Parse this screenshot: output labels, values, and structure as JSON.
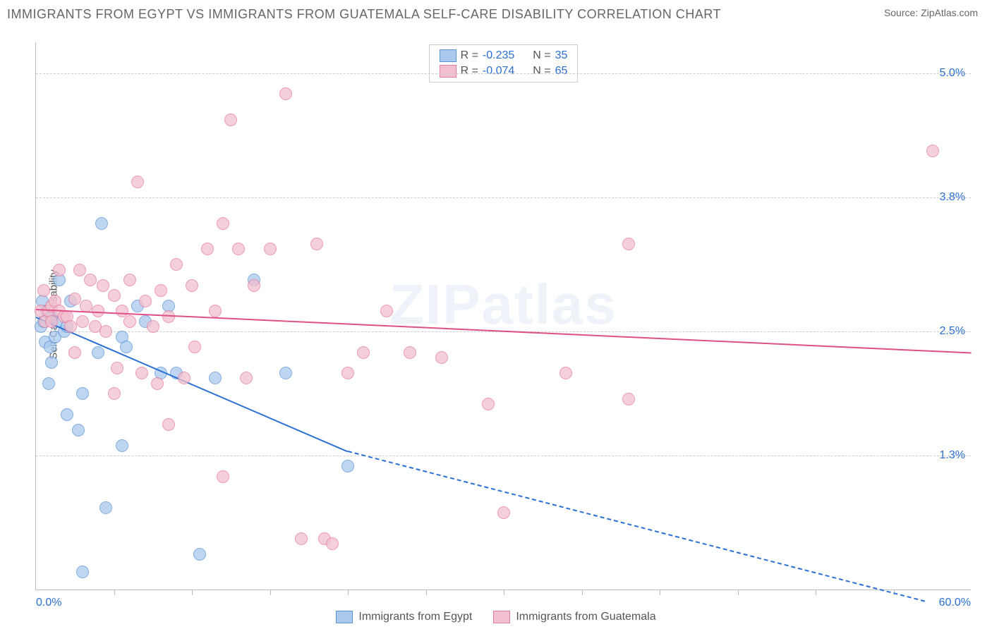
{
  "title": "IMMIGRANTS FROM EGYPT VS IMMIGRANTS FROM GUATEMALA SELF-CARE DISABILITY CORRELATION CHART",
  "source": "Source: ZipAtlas.com",
  "watermark": "ZIPatlas",
  "ylabel": "Self-Care Disability",
  "chart": {
    "type": "scatter",
    "xlim": [
      0,
      60
    ],
    "ylim": [
      0,
      5.3
    ],
    "x_min_label": "0.0%",
    "x_max_label": "60.0%",
    "y_ticks": [
      {
        "v": 1.3,
        "label": "1.3%"
      },
      {
        "v": 2.5,
        "label": "2.5%"
      },
      {
        "v": 3.8,
        "label": "3.8%"
      },
      {
        "v": 5.0,
        "label": "5.0%"
      }
    ],
    "x_tick_positions": [
      5,
      10,
      15,
      20,
      25,
      30,
      35,
      40,
      45,
      50,
      55
    ],
    "grid_color": "#cccccc",
    "background_color": "#ffffff",
    "marker_radius": 8,
    "marker_stroke_width": 1.5,
    "trend_width": 2,
    "series": [
      {
        "name": "Immigrants from Egypt",
        "fill": "#a9c9ed",
        "stroke": "#5b93d6",
        "line_color": "#2a6fd6",
        "R": "-0.235",
        "N": "35",
        "trend": {
          "x1": 0,
          "y1": 2.65,
          "x2": 20,
          "y2": 1.35,
          "dash_to_x": 57,
          "dash_to_y": -0.1
        },
        "points": [
          [
            0.3,
            2.55
          ],
          [
            0.4,
            2.8
          ],
          [
            0.5,
            2.6
          ],
          [
            0.6,
            2.4
          ],
          [
            0.9,
            2.35
          ],
          [
            0.7,
            2.7
          ],
          [
            1.0,
            2.2
          ],
          [
            0.8,
            2.0
          ],
          [
            1.2,
            2.45
          ],
          [
            1.3,
            2.6
          ],
          [
            1.5,
            3.0
          ],
          [
            1.8,
            2.5
          ],
          [
            2.0,
            2.55
          ],
          [
            2.0,
            1.7
          ],
          [
            2.2,
            2.8
          ],
          [
            2.7,
            1.55
          ],
          [
            3.0,
            1.9
          ],
          [
            3.0,
            0.18
          ],
          [
            4.0,
            2.3
          ],
          [
            4.2,
            3.55
          ],
          [
            4.5,
            0.8
          ],
          [
            5.5,
            1.4
          ],
          [
            5.5,
            2.45
          ],
          [
            5.8,
            2.35
          ],
          [
            6.5,
            2.75
          ],
          [
            7.0,
            2.6
          ],
          [
            8.0,
            2.1
          ],
          [
            8.5,
            2.75
          ],
          [
            9.0,
            2.1
          ],
          [
            10.5,
            0.35
          ],
          [
            11.5,
            2.05
          ],
          [
            14.0,
            3.0
          ],
          [
            16.0,
            2.1
          ],
          [
            20.0,
            1.2
          ],
          [
            1.0,
            2.65
          ]
        ]
      },
      {
        "name": "Immigrants from Guatemala",
        "fill": "#f2c0ce",
        "stroke": "#e67ba0",
        "line_color": "#e05088",
        "R": "-0.074",
        "N": "65",
        "trend": {
          "x1": 0,
          "y1": 2.72,
          "x2": 60,
          "y2": 2.3
        },
        "points": [
          [
            0.3,
            2.7
          ],
          [
            0.5,
            2.9
          ],
          [
            0.6,
            2.6
          ],
          [
            0.8,
            2.7
          ],
          [
            1.0,
            2.75
          ],
          [
            1.0,
            2.6
          ],
          [
            1.2,
            2.8
          ],
          [
            1.5,
            3.1
          ],
          [
            1.5,
            2.7
          ],
          [
            1.8,
            2.65
          ],
          [
            2.0,
            2.65
          ],
          [
            2.2,
            2.55
          ],
          [
            2.5,
            2.82
          ],
          [
            2.5,
            2.3
          ],
          [
            2.8,
            3.1
          ],
          [
            3.0,
            2.6
          ],
          [
            3.2,
            2.75
          ],
          [
            3.5,
            3.0
          ],
          [
            3.8,
            2.55
          ],
          [
            4.0,
            2.7
          ],
          [
            4.3,
            2.95
          ],
          [
            4.5,
            2.5
          ],
          [
            5.0,
            2.85
          ],
          [
            5.2,
            2.15
          ],
          [
            5.5,
            2.7
          ],
          [
            6.0,
            3.0
          ],
          [
            6.0,
            2.6
          ],
          [
            6.5,
            3.95
          ],
          [
            6.8,
            2.1
          ],
          [
            7.0,
            2.8
          ],
          [
            7.5,
            2.55
          ],
          [
            7.8,
            2.0
          ],
          [
            8.0,
            2.9
          ],
          [
            8.5,
            2.65
          ],
          [
            8.5,
            1.6
          ],
          [
            9.0,
            3.15
          ],
          [
            9.5,
            2.05
          ],
          [
            10.0,
            2.95
          ],
          [
            10.2,
            2.35
          ],
          [
            11.0,
            3.3
          ],
          [
            11.5,
            2.7
          ],
          [
            12.0,
            3.55
          ],
          [
            12.0,
            1.1
          ],
          [
            12.5,
            4.55
          ],
          [
            13.0,
            3.3
          ],
          [
            13.5,
            2.05
          ],
          [
            14.0,
            2.95
          ],
          [
            15.0,
            3.3
          ],
          [
            16.0,
            4.8
          ],
          [
            17.0,
            0.5
          ],
          [
            18.0,
            3.35
          ],
          [
            18.5,
            0.5
          ],
          [
            19.0,
            0.45
          ],
          [
            20.0,
            2.1
          ],
          [
            21.0,
            2.3
          ],
          [
            22.5,
            2.7
          ],
          [
            24.0,
            2.3
          ],
          [
            26.0,
            2.25
          ],
          [
            29.0,
            1.8
          ],
          [
            30.0,
            0.75
          ],
          [
            34.0,
            2.1
          ],
          [
            38.0,
            1.85
          ],
          [
            38.0,
            3.35
          ],
          [
            57.5,
            4.25
          ],
          [
            5.0,
            1.9
          ]
        ]
      }
    ],
    "legend_bottom": [
      {
        "label": "Immigrants from Egypt",
        "fill": "#a9c9ed",
        "stroke": "#5b93d6"
      },
      {
        "label": "Immigrants from Guatemala",
        "fill": "#f2c0ce",
        "stroke": "#e67ba0"
      }
    ]
  }
}
